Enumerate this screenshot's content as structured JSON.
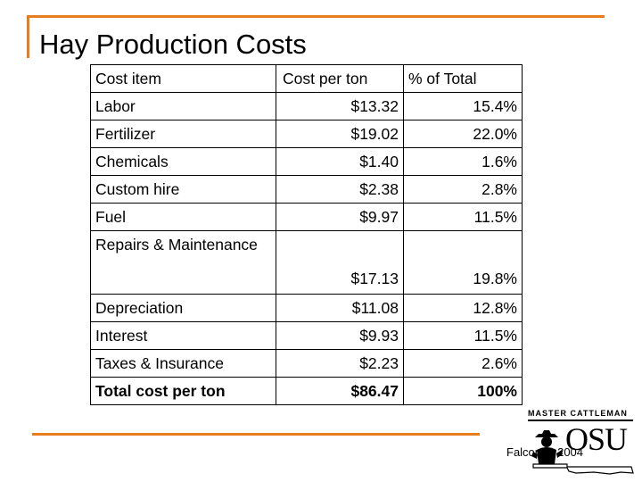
{
  "slide": {
    "title": "Hay Production Costs",
    "credit": "Falconer, 2004"
  },
  "table": {
    "headers": {
      "item": "Cost item",
      "cost": "Cost per ton",
      "pct": "% of Total"
    },
    "rows": [
      {
        "item": "Labor",
        "cost": "$13.32",
        "pct": "15.4%"
      },
      {
        "item": "Fertilizer",
        "cost": "$19.02",
        "pct": "22.0%"
      },
      {
        "item": "Chemicals",
        "cost": "$1.40",
        "pct": "1.6%"
      },
      {
        "item": "Custom hire",
        "cost": "$2.38",
        "pct": "2.8%"
      },
      {
        "item": "Fuel",
        "cost": "$9.97",
        "pct": "11.5%"
      },
      {
        "item": "Repairs & Maintenance",
        "cost": "$17.13",
        "pct": "19.8%"
      },
      {
        "item": "Depreciation",
        "cost": "$11.08",
        "pct": "12.8%"
      },
      {
        "item": "Interest",
        "cost": "$9.93",
        "pct": "11.5%"
      },
      {
        "item": "Taxes & Insurance",
        "cost": "$2.23",
        "pct": "2.6%"
      }
    ],
    "total": {
      "item": "Total cost per ton",
      "cost": "$86.47",
      "pct": "100%"
    }
  },
  "logo": {
    "top_text": "MASTER CATTLEMAN",
    "mark_text": "OSU",
    "accent_color": "#e87d1e"
  }
}
